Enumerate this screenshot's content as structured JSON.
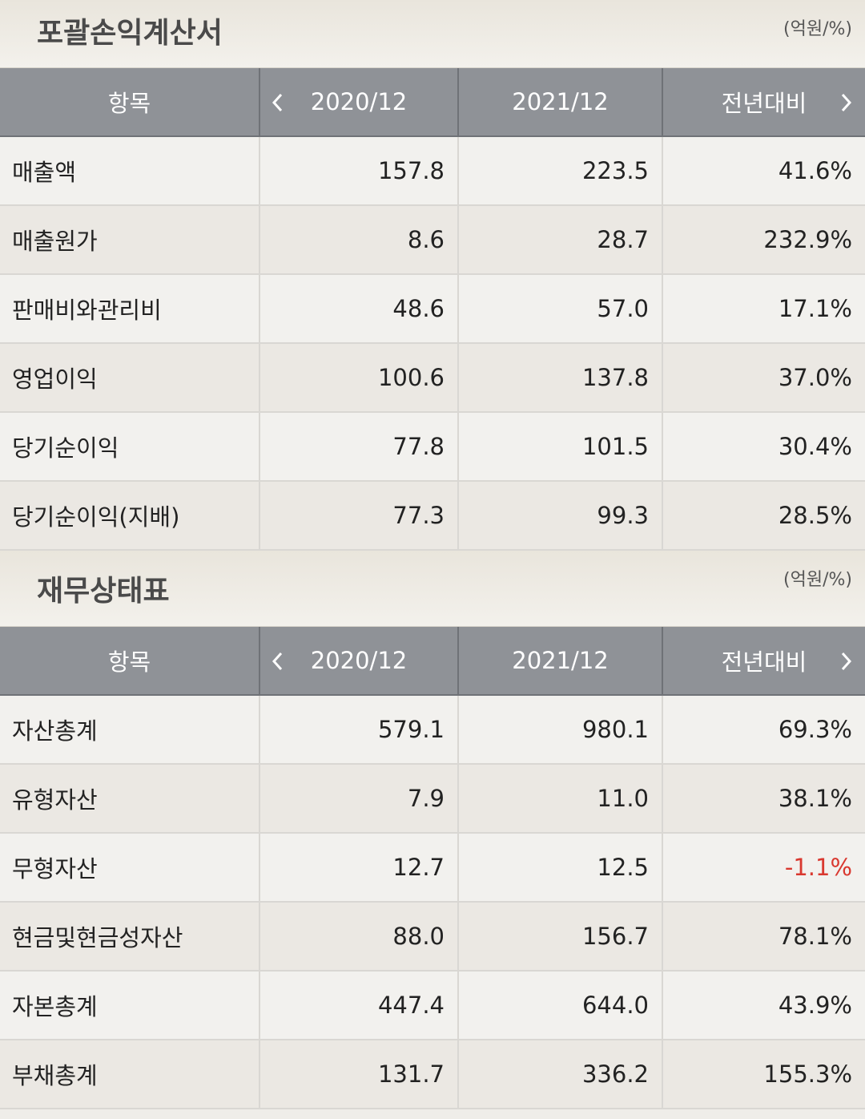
{
  "sections": [
    {
      "title": "포괄손익계산서",
      "unit": "(억원/%)",
      "columns": [
        "항목",
        "2020/12",
        "2021/12",
        "전년대비"
      ],
      "rows": [
        [
          "매출액",
          "157.8",
          "223.5",
          "41.6%"
        ],
        [
          "매출원가",
          "8.6",
          "28.7",
          "232.9%"
        ],
        [
          "판매비와관리비",
          "48.6",
          "57.0",
          "17.1%"
        ],
        [
          "영업이익",
          "100.6",
          "137.8",
          "37.0%"
        ],
        [
          "당기순이익",
          "77.8",
          "101.5",
          "30.4%"
        ],
        [
          "당기순이익(지배)",
          "77.3",
          "99.3",
          "28.5%"
        ]
      ]
    },
    {
      "title": "재무상태표",
      "unit": "(억원/%)",
      "columns": [
        "항목",
        "2020/12",
        "2021/12",
        "전년대비"
      ],
      "rows": [
        [
          "자산총계",
          "579.1",
          "980.1",
          "69.3%"
        ],
        [
          "유형자산",
          "7.9",
          "11.0",
          "38.1%"
        ],
        [
          "무형자산",
          "12.7",
          "12.5",
          "-1.1%"
        ],
        [
          "현금및현금성자산",
          "88.0",
          "156.7",
          "78.1%"
        ],
        [
          "자본총계",
          "447.4",
          "644.0",
          "43.9%"
        ],
        [
          "부채총계",
          "131.7",
          "336.2",
          "155.3%"
        ]
      ]
    }
  ]
}
